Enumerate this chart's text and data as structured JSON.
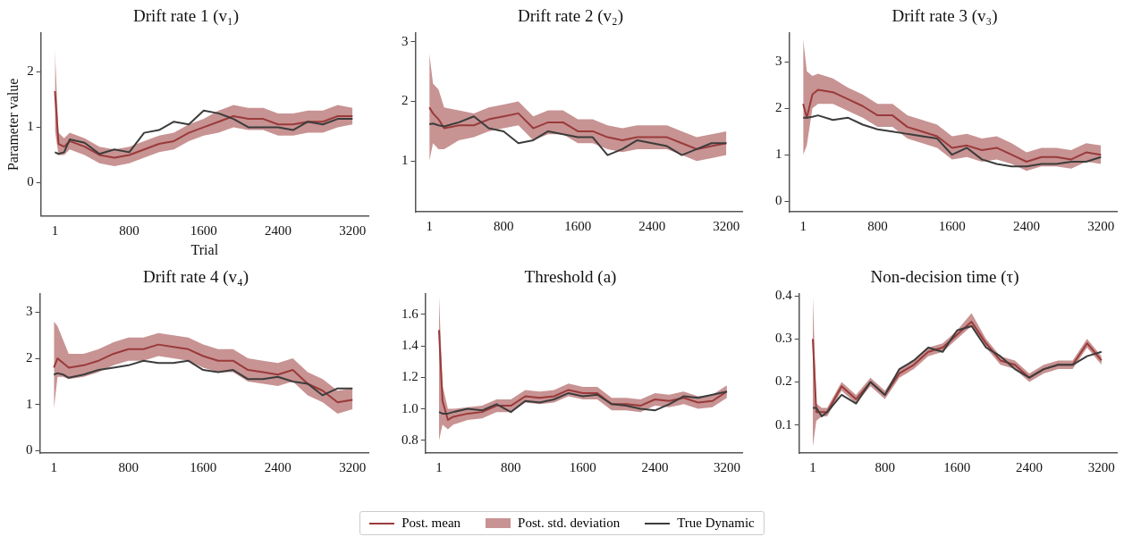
{
  "chart_data": [
    {
      "type": "line",
      "title": "Drift rate 1 (v₁)",
      "xlabel": "Trial",
      "ylabel": "Parameter value",
      "legend": "bottom",
      "annotations": [
        "Post. std. deviation"
      ],
      "xlim": [
        -150,
        3370
      ],
      "xticks": [
        1,
        800,
        1600,
        2400,
        3200
      ],
      "ylim": [
        -0.6,
        2.7
      ],
      "yticks": [
        0,
        1,
        2
      ],
      "x": [
        1,
        40,
        100,
        160,
        320,
        480,
        640,
        800,
        960,
        1120,
        1280,
        1440,
        1600,
        1760,
        1920,
        2080,
        2240,
        2400,
        2560,
        2720,
        2880,
        3040,
        3200
      ],
      "series": [
        {
          "name": "Post. mean",
          "color": "#9a3a3a",
          "values": [
            1.65,
            0.7,
            0.65,
            0.75,
            0.65,
            0.5,
            0.45,
            0.5,
            0.6,
            0.7,
            0.75,
            0.9,
            1.0,
            1.1,
            1.2,
            1.15,
            1.15,
            1.05,
            1.05,
            1.1,
            1.1,
            1.2,
            1.2
          ],
          "lower": [
            0.95,
            0.5,
            0.5,
            0.6,
            0.5,
            0.35,
            0.3,
            0.35,
            0.45,
            0.55,
            0.6,
            0.75,
            0.85,
            0.9,
            1.0,
            0.95,
            0.95,
            0.85,
            0.85,
            0.9,
            0.9,
            1.0,
            1.05
          ],
          "upper": [
            2.4,
            0.9,
            0.8,
            0.9,
            0.8,
            0.65,
            0.6,
            0.65,
            0.75,
            0.85,
            0.9,
            1.05,
            1.15,
            1.3,
            1.4,
            1.35,
            1.35,
            1.25,
            1.25,
            1.3,
            1.3,
            1.4,
            1.35
          ]
        },
        {
          "name": "True Dynamic",
          "color": "#3c3c3c",
          "values": [
            0.55,
            0.52,
            0.55,
            0.78,
            0.72,
            0.52,
            0.6,
            0.55,
            0.9,
            0.95,
            1.1,
            1.05,
            1.3,
            1.25,
            1.15,
            1.0,
            1.0,
            1.0,
            0.95,
            1.1,
            1.05,
            1.15,
            1.15
          ]
        }
      ]
    },
    {
      "type": "line",
      "title": "Drift rate 2 (v₂)",
      "xlim": [
        -150,
        3370
      ],
      "xticks": [
        1,
        800,
        1600,
        2400,
        3200
      ],
      "ylim": [
        0.15,
        3.15
      ],
      "yticks": [
        1,
        2,
        3
      ],
      "x": [
        1,
        40,
        100,
        160,
        320,
        480,
        640,
        800,
        960,
        1120,
        1280,
        1440,
        1600,
        1760,
        1920,
        2080,
        2240,
        2400,
        2560,
        2720,
        2880,
        3040,
        3200
      ],
      "series": [
        {
          "color": "#9a3a3a",
          "values": [
            1.9,
            1.8,
            1.7,
            1.55,
            1.6,
            1.6,
            1.7,
            1.75,
            1.8,
            1.55,
            1.65,
            1.65,
            1.5,
            1.5,
            1.4,
            1.35,
            1.4,
            1.4,
            1.4,
            1.3,
            1.2,
            1.25,
            1.3
          ],
          "lower": [
            1.0,
            1.3,
            1.2,
            1.2,
            1.35,
            1.4,
            1.5,
            1.55,
            1.6,
            1.35,
            1.45,
            1.45,
            1.3,
            1.3,
            1.2,
            1.15,
            1.2,
            1.2,
            1.2,
            1.1,
            1.0,
            1.05,
            1.1
          ],
          "upper": [
            2.8,
            2.3,
            2.2,
            1.9,
            1.85,
            1.8,
            1.9,
            1.95,
            2.0,
            1.75,
            1.85,
            1.85,
            1.7,
            1.7,
            1.6,
            1.55,
            1.6,
            1.6,
            1.6,
            1.5,
            1.4,
            1.45,
            1.5
          ]
        },
        {
          "color": "#3c3c3c",
          "values": [
            1.62,
            1.63,
            1.6,
            1.58,
            1.65,
            1.75,
            1.55,
            1.5,
            1.3,
            1.35,
            1.5,
            1.45,
            1.4,
            1.4,
            1.1,
            1.2,
            1.35,
            1.3,
            1.25,
            1.1,
            1.2,
            1.3,
            1.3
          ]
        }
      ]
    },
    {
      "type": "line",
      "title": "Drift rate 3 (v₃)",
      "xlim": [
        -150,
        3370
      ],
      "xticks": [
        1,
        800,
        1600,
        2400,
        3200
      ],
      "ylim": [
        -0.23,
        3.63
      ],
      "yticks": [
        0,
        1,
        2,
        3
      ],
      "x": [
        1,
        40,
        100,
        160,
        320,
        480,
        640,
        800,
        960,
        1120,
        1280,
        1440,
        1600,
        1760,
        1920,
        2080,
        2240,
        2400,
        2560,
        2720,
        2880,
        3040,
        3200
      ],
      "series": [
        {
          "color": "#9a3a3a",
          "values": [
            2.1,
            1.8,
            2.3,
            2.4,
            2.35,
            2.2,
            2.05,
            1.85,
            1.85,
            1.6,
            1.5,
            1.4,
            1.15,
            1.2,
            1.1,
            1.15,
            1.0,
            0.85,
            0.95,
            0.95,
            0.9,
            1.05,
            1.0
          ],
          "lower": [
            1.0,
            1.2,
            2.0,
            2.1,
            2.1,
            1.95,
            1.8,
            1.6,
            1.6,
            1.35,
            1.25,
            1.15,
            0.9,
            0.95,
            0.85,
            0.9,
            0.8,
            0.65,
            0.75,
            0.75,
            0.7,
            0.85,
            0.8
          ],
          "upper": [
            3.5,
            2.8,
            2.7,
            2.75,
            2.65,
            2.45,
            2.3,
            2.1,
            2.1,
            1.85,
            1.75,
            1.65,
            1.4,
            1.45,
            1.35,
            1.4,
            1.25,
            1.05,
            1.15,
            1.15,
            1.1,
            1.25,
            1.2
          ]
        },
        {
          "color": "#3c3c3c",
          "values": [
            1.8,
            1.8,
            1.82,
            1.85,
            1.75,
            1.8,
            1.65,
            1.55,
            1.5,
            1.45,
            1.4,
            1.35,
            1.0,
            1.15,
            0.9,
            0.8,
            0.75,
            0.75,
            0.8,
            0.8,
            0.85,
            0.85,
            0.95
          ]
        }
      ]
    },
    {
      "type": "line",
      "title": "Drift rate 4 (v₄)",
      "xlim": [
        -150,
        3370
      ],
      "xticks": [
        1,
        800,
        1600,
        2400,
        3200
      ],
      "ylim": [
        -0.05,
        3.4
      ],
      "yticks": [
        0,
        1,
        2,
        3
      ],
      "x": [
        1,
        40,
        100,
        160,
        320,
        480,
        640,
        800,
        960,
        1120,
        1280,
        1440,
        1600,
        1760,
        1920,
        2080,
        2240,
        2400,
        2560,
        2720,
        2880,
        3040,
        3200
      ],
      "series": [
        {
          "color": "#9a3a3a",
          "values": [
            1.8,
            2.0,
            1.9,
            1.8,
            1.85,
            1.95,
            2.1,
            2.2,
            2.2,
            2.3,
            2.25,
            2.2,
            2.05,
            1.95,
            1.95,
            1.75,
            1.7,
            1.65,
            1.75,
            1.45,
            1.3,
            1.05,
            1.1
          ],
          "lower": [
            0.9,
            1.6,
            1.6,
            1.55,
            1.6,
            1.7,
            1.85,
            1.95,
            1.95,
            2.05,
            2.0,
            1.95,
            1.8,
            1.7,
            1.7,
            1.5,
            1.45,
            1.4,
            1.5,
            1.2,
            1.05,
            0.8,
            0.9
          ],
          "upper": [
            2.8,
            2.7,
            2.4,
            2.1,
            2.1,
            2.2,
            2.35,
            2.45,
            2.45,
            2.55,
            2.5,
            2.45,
            2.3,
            2.2,
            2.2,
            2.0,
            1.95,
            1.9,
            2.0,
            1.7,
            1.55,
            1.3,
            1.35
          ]
        },
        {
          "color": "#3c3c3c",
          "values": [
            1.65,
            1.68,
            1.65,
            1.58,
            1.65,
            1.75,
            1.8,
            1.85,
            1.95,
            1.9,
            1.9,
            1.95,
            1.75,
            1.7,
            1.75,
            1.55,
            1.55,
            1.6,
            1.5,
            1.45,
            1.2,
            1.35,
            1.35
          ]
        }
      ]
    },
    {
      "type": "line",
      "title": "Threshold (a)",
      "xlim": [
        -150,
        3370
      ],
      "xticks": [
        1,
        800,
        1600,
        2400,
        3200
      ],
      "ylim": [
        0.72,
        1.73
      ],
      "yticks": [
        {
          "value": 0.8,
          "label": "0.8"
        },
        {
          "value": 1,
          "label": "1.0"
        },
        {
          "value": 1.2,
          "label": "1.2"
        },
        {
          "value": 1.4,
          "label": "1.4"
        },
        {
          "value": 1.6,
          "label": "1.6"
        }
      ],
      "x": [
        1,
        40,
        100,
        160,
        320,
        480,
        640,
        800,
        960,
        1120,
        1280,
        1440,
        1600,
        1760,
        1920,
        2080,
        2240,
        2400,
        2560,
        2720,
        2880,
        3040,
        3200
      ],
      "series": [
        {
          "color": "#9a3a3a",
          "values": [
            1.5,
            1.05,
            0.93,
            0.95,
            0.97,
            0.98,
            1.02,
            1.02,
            1.08,
            1.07,
            1.08,
            1.12,
            1.1,
            1.1,
            1.03,
            1.03,
            1.02,
            1.06,
            1.05,
            1.07,
            1.04,
            1.05,
            1.11
          ],
          "lower": [
            0.8,
            0.9,
            0.87,
            0.9,
            0.93,
            0.94,
            0.98,
            0.98,
            1.04,
            1.03,
            1.04,
            1.08,
            1.06,
            1.06,
            0.99,
            0.99,
            0.98,
            1.02,
            1.01,
            1.03,
            1.0,
            1.01,
            1.07
          ],
          "upper": [
            1.72,
            1.15,
            1.0,
            1.0,
            1.01,
            1.02,
            1.06,
            1.06,
            1.12,
            1.11,
            1.12,
            1.16,
            1.14,
            1.14,
            1.07,
            1.07,
            1.06,
            1.1,
            1.09,
            1.11,
            1.08,
            1.09,
            1.15
          ]
        },
        {
          "color": "#3c3c3c",
          "values": [
            0.98,
            0.97,
            0.97,
            0.98,
            1.0,
            0.99,
            1.03,
            0.98,
            1.05,
            1.04,
            1.06,
            1.1,
            1.08,
            1.09,
            1.03,
            1.02,
            1.0,
            0.99,
            1.03,
            1.08,
            1.07,
            1.09,
            1.11
          ]
        }
      ]
    },
    {
      "type": "line",
      "title": "Non-decision time (τ)",
      "xlim": [
        -150,
        3370
      ],
      "xticks": [
        1,
        800,
        1600,
        2400,
        3200
      ],
      "ylim": [
        0.035,
        0.405
      ],
      "yticks": [
        0.1,
        0.2,
        0.3,
        0.4
      ],
      "x": [
        1,
        40,
        100,
        160,
        320,
        480,
        640,
        800,
        960,
        1120,
        1280,
        1440,
        1600,
        1760,
        1920,
        2080,
        2240,
        2400,
        2560,
        2720,
        2880,
        3040,
        3200
      ],
      "series": [
        {
          "color": "#9a3a3a",
          "values": [
            0.3,
            0.13,
            0.13,
            0.13,
            0.19,
            0.16,
            0.2,
            0.17,
            0.22,
            0.24,
            0.27,
            0.28,
            0.31,
            0.34,
            0.29,
            0.25,
            0.24,
            0.21,
            0.23,
            0.24,
            0.24,
            0.29,
            0.25
          ],
          "lower": [
            0.05,
            0.11,
            0.12,
            0.12,
            0.18,
            0.15,
            0.19,
            0.16,
            0.21,
            0.23,
            0.26,
            0.27,
            0.3,
            0.33,
            0.28,
            0.24,
            0.23,
            0.2,
            0.22,
            0.23,
            0.23,
            0.28,
            0.24
          ],
          "upper": [
            0.4,
            0.15,
            0.14,
            0.14,
            0.2,
            0.17,
            0.21,
            0.18,
            0.23,
            0.25,
            0.28,
            0.29,
            0.32,
            0.36,
            0.3,
            0.26,
            0.25,
            0.22,
            0.24,
            0.25,
            0.25,
            0.3,
            0.26
          ]
        },
        {
          "color": "#3c3c3c",
          "values": [
            0.14,
            0.14,
            0.12,
            0.13,
            0.17,
            0.15,
            0.2,
            0.17,
            0.23,
            0.25,
            0.28,
            0.27,
            0.32,
            0.33,
            0.28,
            0.26,
            0.23,
            0.21,
            0.23,
            0.24,
            0.24,
            0.26,
            0.27
          ]
        }
      ]
    }
  ]
}
